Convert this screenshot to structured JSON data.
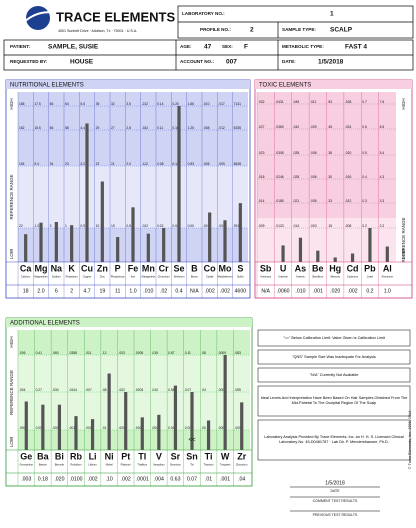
{
  "header": {
    "company": "TRACE ELEMENTS",
    "address": "4501 Sunbelt Drive · Addison, Tx · 75001 · U.S.A.",
    "fields": [
      {
        "label": "LABORATORY NO.:",
        "value": "1"
      },
      {
        "label": "PROFILE NO.:",
        "value": "2"
      },
      {
        "label": "SAMPLE TYPE:",
        "value": "SCALP"
      },
      {
        "label": "PATIENT:",
        "value": "SAMPLE, SUSIE"
      },
      {
        "label": "AGE:",
        "value": "47"
      },
      {
        "label": "SEX:",
        "value": "F"
      },
      {
        "label": "METABOLIC TYPE:",
        "value": "FAST 4"
      },
      {
        "label": "REQUESTED BY:",
        "value": "HOUSE"
      },
      {
        "label": "ACCOUNT NO.:",
        "value": "007"
      },
      {
        "label": "DATE:",
        "value": "1/5/2018"
      }
    ]
  },
  "nutritional": {
    "title": "NUTRITIONAL ELEMENTS",
    "high": "HIGH",
    "range": "REFERENCE RANGE",
    "low": "LOW",
    "symbols": [
      "Ca",
      "Mg",
      "Na",
      "K",
      "Cu",
      "Zn",
      "P",
      "Fe",
      "Mn",
      "Cr",
      "Se",
      "B",
      "Co",
      "Mo",
      "S"
    ],
    "names": [
      "Calcium",
      "Magnesium",
      "Sodium",
      "Potassium",
      "Copper",
      "Zinc",
      "Phosphorus",
      "Iron",
      "Manganese",
      "Chromium",
      "Selenium",
      "Boron",
      "Cobalt",
      "Molybdenum",
      "Sulfur"
    ],
    "scale_rows": [
      [
        "186",
        "17.5",
        "65",
        "64",
        "5.5",
        "35",
        "32",
        "3.5",
        ".212",
        "0.14",
        "0.20",
        "1.66",
        ".010",
        ".017",
        "7141"
      ],
      [
        "162",
        "15.5",
        "56",
        "58",
        "4.4",
        "29",
        "27",
        "2.8",
        ".162",
        "0.11",
        "0.16",
        "1.25",
        ".008",
        ".012",
        "6335"
      ],
      [
        "104",
        "9.4",
        "34",
        "23",
        "3.2",
        "22",
        "21",
        "2.0",
        ".112",
        "0.08",
        "0.12",
        "0.83",
        ".005",
        ".009",
        "5628"
      ],
      [
        "22",
        "1.3",
        "3",
        "1",
        "0.9",
        "10",
        "15",
        "0.5",
        ".012",
        "0.02",
        "0.04",
        "0.00",
        ".001",
        ".001",
        "3910"
      ]
    ],
    "values": [
      18,
      2.0,
      6,
      2,
      4.7,
      19,
      11,
      1.0,
      0.01,
      0.02,
      0.4,
      null,
      0.002,
      0.002,
      4600
    ],
    "value_labels": [
      "18",
      "2.0",
      "6",
      "2",
      "4.7",
      "19",
      "11",
      "1.0",
      ".010",
      ".02",
      "0.4",
      "N/A",
      ".002",
      ".002",
      "4600"
    ]
  },
  "toxic": {
    "title": "TOXIC ELEMENTS",
    "high": "HIGH",
    "range": "REFERENCE RANGE",
    "low": "LOW",
    "symbols": [
      "Sb",
      "U",
      "As",
      "Be",
      "Hg",
      "Cd",
      "Pb",
      "Al"
    ],
    "names": [
      "Antimony",
      "Uranium",
      "Arsenic",
      "Beryllium",
      "Mercury",
      "Cadmium",
      "Lead",
      "Aluminum"
    ],
    "scale_rows": [
      [
        ".032",
        ".0431",
        ".049",
        ".011",
        ".53",
        ".028",
        "0.7",
        "7.6"
      ],
      [
        ".027",
        ".0369",
        ".042",
        ".009",
        ".45",
        ".024",
        "0.6",
        "6.5"
      ],
      [
        ".023",
        ".0308",
        ".035",
        ".008",
        ".38",
        ".020",
        "0.5",
        "5.4"
      ],
      [
        ".018",
        ".0246",
        ".028",
        ".006",
        ".30",
        ".016",
        "0.4",
        "4.3"
      ],
      [
        ".014",
        ".0185",
        ".021",
        ".005",
        ".23",
        ".012",
        "0.3",
        "3.3"
      ],
      [
        ".009",
        ".0123",
        ".014",
        ".003",
        ".15",
        ".008",
        "0.2",
        "2.2"
      ]
    ],
    "values": [
      null,
      0.006,
      0.01,
      0.001,
      0.02,
      0.002,
      0.2,
      1.0
    ],
    "value_labels": [
      "N/A",
      ".0060",
      ".010",
      ".001",
      ".020",
      ".002",
      "0.2",
      "1.0"
    ]
  },
  "additional": {
    "title": "ADDITIONAL ELEMENTS",
    "high": "HIGH",
    "range": "REFERENCE RANGE",
    "low": "LOW",
    "flag": "<<",
    "symbols": [
      "Ge",
      "Ba",
      "Bi",
      "Rb",
      "Li",
      "Ni",
      "Pt",
      "Tl",
      "V",
      "Sr",
      "Sn",
      "Ti",
      "W",
      "Zr"
    ],
    "names": [
      "Germanium",
      "Barium",
      "Bismuth",
      "Rubidium",
      "Lithium",
      "Nickel",
      "Platinum",
      "Thallium",
      "Vanadium",
      "Strontium",
      "Tin",
      "Titanium",
      "Tungsten",
      "Zirconium"
    ],
    "scale_rows": [
      [
        ".006",
        "0.41",
        ".060",
        ".0358",
        ".011",
        ".12",
        ".003",
        ".0005",
        ".015",
        "0.87",
        "0.11",
        ".08",
        ".0009",
        ".083"
      ],
      [
        ".004",
        "0.27",
        ".030",
        ".0244",
        ".007",
        ".08",
        ".002",
        ".0003",
        ".010",
        "0.58",
        "0.07",
        ".04",
        ".0006",
        ".055"
      ],
      [
        ".000",
        "0.00",
        ".000",
        ".0017",
        ".000",
        ".01",
        ".000",
        ".0000",
        ".000",
        "0.00",
        "0.00",
        ".00",
        ".0000",
        ".000"
      ]
    ],
    "values": [
      0.003,
      0.18,
      0.02,
      0.01,
      0.002,
      0.1,
      0.002,
      0.0001,
      0.004,
      0.63,
      0.07,
      0.01,
      0.001,
      0.04
    ],
    "value_labels": [
      ".003",
      "0.18",
      ".020",
      ".0100",
      ".002",
      ".10",
      ".002",
      ".0001",
      ".004",
      "0.63",
      "0.07",
      ".01",
      ".001",
      ".04"
    ]
  },
  "notes": [
    "\"<=\" Below Calibration Limit: Value Given Is Calibration Limit",
    "\"QNS\" Sample Size Was Inadequate For Analysis",
    "\"N/A\" Currently Not Available",
    "Ideal Levels And Interpretation Have Been Based On Hair Samples Obtained From The Mid-Parietal To The Occipital Region Of The Scalp",
    "Laboratory Analysis Provided By Trace Elements, Inc. an H. H. S. Licensed Clinical Laboratory No. 45-D0481787 · Lab Dir. P. Mendershausen, Ph.D."
  ],
  "footer": {
    "date": "1/5/2018",
    "date_label": "DATE",
    "comment": "COMMENT TEST RESULTS",
    "previous": "PREVIOUS TEST RESULTS",
    "copyright": "© Trace Elements, Inc. 1998, 2014"
  }
}
